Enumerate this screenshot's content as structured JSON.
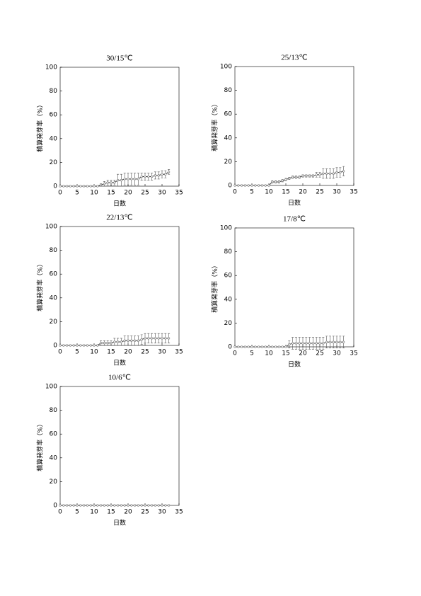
{
  "chart_data": [
    {
      "type": "line",
      "title": "30/15℃",
      "x_label": "日数",
      "y_label": "積算発芽率（%）",
      "xlim": [
        0,
        35
      ],
      "xticks": [
        0,
        5,
        10,
        15,
        20,
        25,
        30,
        35
      ],
      "ylim": [
        0,
        100
      ],
      "yticks": [
        0,
        20,
        40,
        60,
        80,
        100
      ],
      "x": [
        0,
        1,
        2,
        3,
        4,
        5,
        6,
        7,
        8,
        9,
        10,
        11,
        12,
        13,
        14,
        15,
        16,
        17,
        18,
        19,
        20,
        21,
        22,
        23,
        24,
        25,
        26,
        27,
        28,
        29,
        30,
        31,
        32
      ],
      "series": [
        {
          "color": "#333333",
          "values": [
            0,
            0,
            0,
            0,
            0,
            0,
            0,
            0,
            0,
            0,
            0,
            0,
            1,
            2,
            3,
            3,
            3,
            5,
            5,
            6,
            6,
            6,
            6,
            6,
            8,
            8,
            8,
            8,
            9,
            9,
            10,
            10,
            12
          ],
          "errors": [
            0,
            0,
            0,
            0,
            0,
            0,
            0,
            0,
            0,
            0,
            0,
            0,
            1,
            2,
            2,
            2,
            2,
            5,
            5,
            5,
            5,
            5,
            5,
            5,
            3,
            3,
            3,
            3,
            3,
            3,
            3,
            3,
            2
          ]
        }
      ]
    },
    {
      "type": "line",
      "title": "25/13℃",
      "x_label": "日数",
      "y_label": "積算発芽率（%）",
      "xlim": [
        0,
        35
      ],
      "xticks": [
        0,
        5,
        10,
        15,
        20,
        25,
        30,
        35
      ],
      "ylim": [
        0,
        100
      ],
      "yticks": [
        0,
        20,
        40,
        60,
        80,
        100
      ],
      "x": [
        0,
        1,
        2,
        3,
        4,
        5,
        6,
        7,
        8,
        9,
        10,
        11,
        12,
        13,
        14,
        15,
        16,
        17,
        18,
        19,
        20,
        21,
        22,
        23,
        24,
        25,
        26,
        27,
        28,
        29,
        30,
        31,
        32
      ],
      "series": [
        {
          "color": "#333333",
          "values": [
            0,
            0,
            0,
            0,
            0,
            0,
            0,
            0,
            0,
            0,
            0,
            3,
            3,
            3,
            4,
            5,
            6,
            7,
            7,
            7,
            8,
            8,
            8,
            8,
            9,
            9,
            10,
            10,
            10,
            10,
            11,
            11,
            12
          ],
          "errors": [
            0,
            0,
            0,
            0,
            0,
            0,
            0,
            0,
            0,
            0,
            0,
            1,
            1,
            1,
            1,
            1,
            1,
            1,
            1,
            1,
            1,
            1,
            1,
            1,
            2,
            2,
            4,
            4,
            4,
            4,
            4,
            4,
            4
          ]
        }
      ]
    },
    {
      "type": "line",
      "title": "22/13℃",
      "x_label": "日数",
      "y_label": "積算発芽率（%）",
      "xlim": [
        0,
        35
      ],
      "xticks": [
        0,
        5,
        10,
        15,
        20,
        25,
        30,
        35
      ],
      "ylim": [
        0,
        100
      ],
      "yticks": [
        0,
        20,
        40,
        60,
        80,
        100
      ],
      "x": [
        0,
        1,
        2,
        3,
        4,
        5,
        6,
        7,
        8,
        9,
        10,
        11,
        12,
        13,
        14,
        15,
        16,
        17,
        18,
        19,
        20,
        21,
        22,
        23,
        24,
        25,
        26,
        27,
        28,
        29,
        30,
        31,
        32
      ],
      "series": [
        {
          "color": "#333333",
          "values": [
            0,
            0,
            0,
            0,
            0,
            0,
            0,
            0,
            0,
            0,
            0,
            0,
            2,
            2,
            2,
            2,
            3,
            3,
            3,
            4,
            4,
            4,
            4,
            4,
            5,
            6,
            6,
            6,
            6,
            6,
            6,
            6,
            6
          ],
          "errors": [
            0,
            0,
            0,
            0,
            0,
            0,
            0,
            0,
            0,
            0,
            0,
            0,
            2,
            2,
            2,
            2,
            3,
            3,
            3,
            4,
            4,
            4,
            4,
            4,
            4,
            4,
            4,
            4,
            4,
            4,
            4,
            4,
            4
          ]
        }
      ]
    },
    {
      "type": "line",
      "title": "17/8℃",
      "x_label": "日数",
      "y_label": "積算発芽率（%）",
      "xlim": [
        0,
        35
      ],
      "xticks": [
        0,
        5,
        10,
        15,
        20,
        25,
        30,
        35
      ],
      "ylim": [
        0,
        100
      ],
      "yticks": [
        0,
        20,
        40,
        60,
        80,
        100
      ],
      "x": [
        0,
        1,
        2,
        3,
        4,
        5,
        6,
        7,
        8,
        9,
        10,
        11,
        12,
        13,
        14,
        15,
        16,
        17,
        18,
        19,
        20,
        21,
        22,
        23,
        24,
        25,
        26,
        27,
        28,
        29,
        30,
        31,
        32
      ],
      "series": [
        {
          "color": "#333333",
          "values": [
            0,
            0,
            0,
            0,
            0,
            0,
            0,
            0,
            0,
            0,
            0,
            0,
            0,
            0,
            0,
            0,
            2,
            3,
            3,
            3,
            3,
            3,
            3,
            3,
            3,
            3,
            3,
            4,
            4,
            4,
            4,
            4,
            4
          ],
          "errors": [
            0,
            0,
            0,
            0,
            0,
            0,
            0,
            0,
            0,
            0,
            0,
            0,
            0,
            0,
            0,
            0,
            3,
            5,
            5,
            5,
            5,
            5,
            5,
            5,
            5,
            5,
            5,
            5,
            5,
            5,
            5,
            5,
            5
          ]
        }
      ]
    },
    {
      "type": "line",
      "title": "10/6℃",
      "x_label": "日数",
      "y_label": "積算発芽率（%）",
      "xlim": [
        0,
        35
      ],
      "xticks": [
        0,
        5,
        10,
        15,
        20,
        25,
        30,
        35
      ],
      "ylim": [
        0,
        100
      ],
      "yticks": [
        0,
        20,
        40,
        60,
        80,
        100
      ],
      "x": [
        0,
        1,
        2,
        3,
        4,
        5,
        6,
        7,
        8,
        9,
        10,
        11,
        12,
        13,
        14,
        15,
        16,
        17,
        18,
        19,
        20,
        21,
        22,
        23,
        24,
        25,
        26,
        27,
        28,
        29,
        30,
        31,
        32
      ],
      "series": [
        {
          "color": "#333333",
          "values": [
            0,
            0,
            0,
            0,
            0,
            0,
            0,
            0,
            0,
            0,
            0,
            0,
            0,
            0,
            0,
            0,
            0,
            0,
            0,
            0,
            0,
            0,
            0,
            0,
            0,
            0,
            0,
            0,
            0,
            0,
            0,
            0,
            0
          ],
          "errors": [
            0,
            0,
            0,
            0,
            0,
            0,
            0,
            0,
            0,
            0,
            0,
            0,
            0,
            0,
            0,
            0,
            0,
            0,
            0,
            0,
            0,
            0,
            0,
            0,
            0,
            0,
            0,
            0,
            0,
            0,
            0,
            0,
            0
          ]
        }
      ]
    }
  ]
}
